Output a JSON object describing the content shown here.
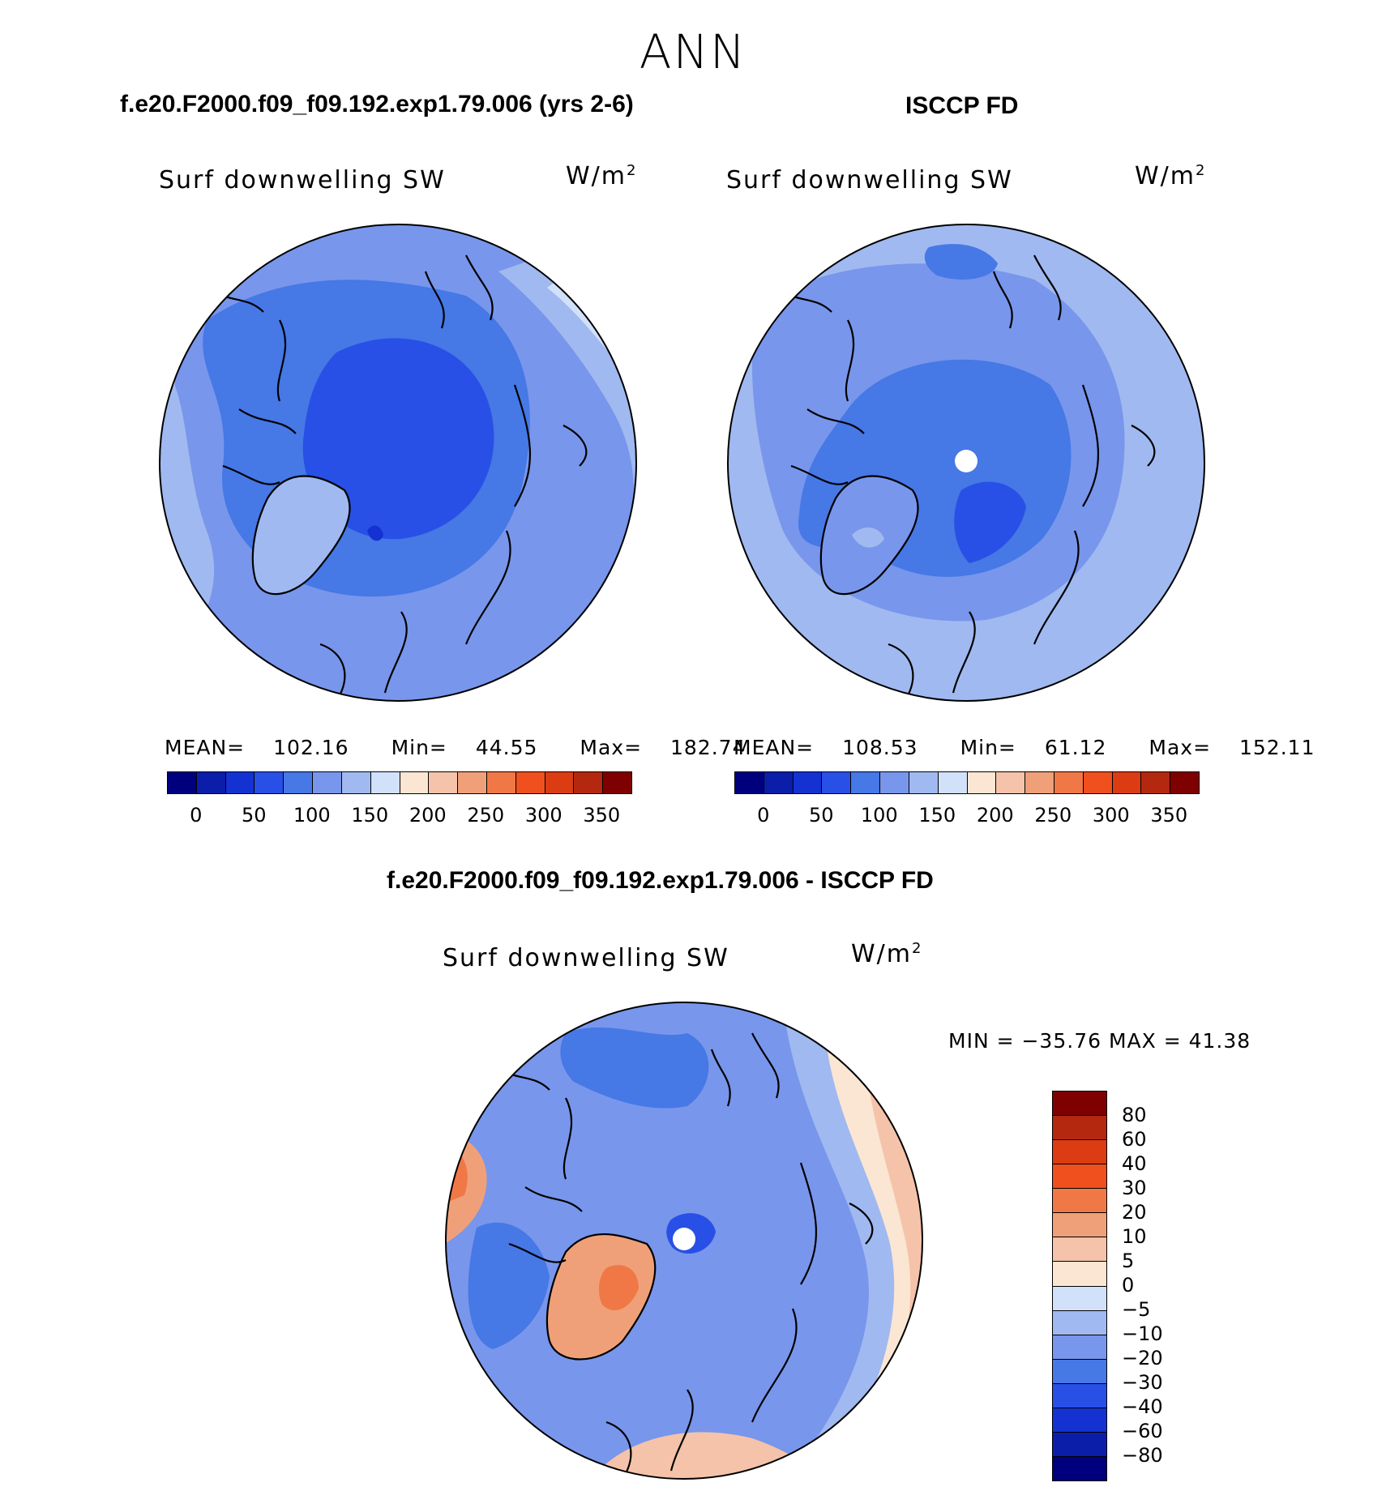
{
  "season": "ANN",
  "panels": [
    {
      "title": "f.e20.F2000.f09_f09.192.exp1.79.006 (yrs 2-6)",
      "variable": "Surf downwelling SW",
      "units_base": "W/m",
      "units_exp": "2",
      "mean_label": "MEAN=",
      "mean": "102.16",
      "min_label": "Min=",
      "min": "44.55",
      "max_label": "Max=",
      "max": "182.74"
    },
    {
      "title": "ISCCP FD",
      "variable": "Surf downwelling SW",
      "units_base": "W/m",
      "units_exp": "2",
      "mean_label": "MEAN=",
      "mean": "108.53",
      "min_label": "Min=",
      "min": "61.12",
      "max_label": "Max=",
      "max": "152.11"
    }
  ],
  "diff_panel": {
    "title": "f.e20.F2000.f09_f09.192.exp1.79.006 - ISCCP FD",
    "variable": "Surf downwelling SW",
    "units_base": "W/m",
    "units_exp": "2",
    "minmax": "MIN = −35.76 MAX =   41.38"
  },
  "colors": {
    "abs_scale": [
      "#00007f",
      "#0a1eaa",
      "#1432d2",
      "#2850e6",
      "#4678e6",
      "#7896eb",
      "#a0b9f0",
      "#d2e1fa",
      "#fae6d2",
      "#f5c3aa",
      "#f0a078",
      "#f07846",
      "#f0501e",
      "#dc3c14",
      "#b42810",
      "#7f0000"
    ],
    "diff_scale": [
      "#7f0000",
      "#b42810",
      "#dc3c14",
      "#f0501e",
      "#f07846",
      "#f0a078",
      "#f5c3aa",
      "#fae6d2",
      "#d2e1fa",
      "#a0b9f0",
      "#7896eb",
      "#4678e6",
      "#2850e6",
      "#1432d2",
      "#0a1eaa",
      "#00007f"
    ]
  },
  "colorbar_abs_ticks": [
    "0",
    "50",
    "100",
    "150",
    "200",
    "250",
    "300",
    "350"
  ],
  "colorbar_diff_ticks": [
    "80",
    "60",
    "40",
    "30",
    "20",
    "10",
    "5",
    "0",
    "−5",
    "−10",
    "−20",
    "−30",
    "−40",
    "−60",
    "−80"
  ],
  "chart_data": [
    {
      "type": "heatmap",
      "projection": "north polar stereographic",
      "title": "f.e20.F2000.f09_f09.192.exp1.79.006 (yrs 2-6)",
      "variable": "Surf downwelling SW",
      "units": "W/m2",
      "levels": [
        0,
        25,
        50,
        75,
        100,
        125,
        150,
        175,
        200,
        225,
        250,
        275,
        300,
        325,
        350
      ],
      "mean": 102.16,
      "min": 44.55,
      "max": 182.74
    },
    {
      "type": "heatmap",
      "projection": "north polar stereographic",
      "title": "ISCCP FD",
      "variable": "Surf downwelling SW",
      "units": "W/m2",
      "levels": [
        0,
        25,
        50,
        75,
        100,
        125,
        150,
        175,
        200,
        225,
        250,
        275,
        300,
        325,
        350
      ],
      "mean": 108.53,
      "min": 61.12,
      "max": 152.11
    },
    {
      "type": "heatmap",
      "projection": "north polar stereographic",
      "title": "f.e20.F2000.f09_f09.192.exp1.79.006 - ISCCP FD",
      "variable": "Surf downwelling SW",
      "units": "W/m2",
      "levels": [
        -80,
        -60,
        -40,
        -30,
        -20,
        -10,
        -5,
        0,
        5,
        10,
        20,
        30,
        40,
        60,
        80
      ],
      "min": -35.76,
      "max": 41.38
    }
  ]
}
